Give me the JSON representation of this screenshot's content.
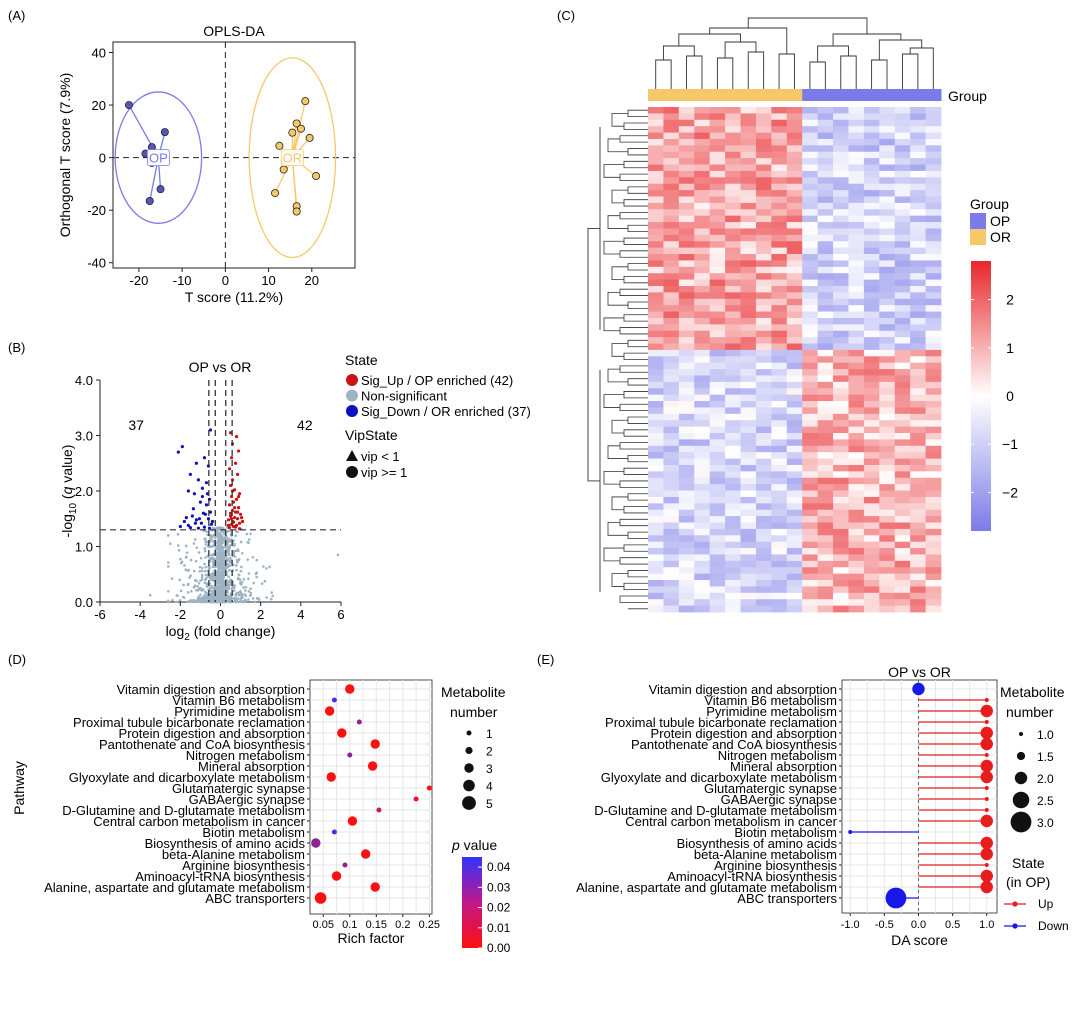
{
  "chart_data": [
    {
      "panel": "(A)",
      "type": "scatter",
      "title": "OPLS-DA",
      "xlabel": "T score (11.2%)",
      "ylabel": "Orthogonal T score (7.9%)",
      "xlim": [
        -26,
        30
      ],
      "ylim": [
        -42,
        44
      ],
      "xticks": [
        "-20",
        "-10",
        "0",
        "10",
        "20"
      ],
      "xtick_values": [
        -20,
        -10,
        0,
        10,
        20
      ],
      "yticks": [
        "-40",
        "-20",
        "0",
        "20",
        "40"
      ],
      "ytick_values": [
        -40,
        -20,
        0,
        20,
        40
      ],
      "reference_lines": {
        "x": 0,
        "y": 0
      },
      "groups": [
        {
          "name": "OP",
          "color": "#7B7BE8",
          "fill": "#5555BB",
          "centroid": [
            -15.5,
            0
          ],
          "ellipse": {
            "cx": -15.5,
            "cy": 0,
            "rx": 10,
            "ry": 25
          },
          "points": [
            [
              -22.3,
              20
            ],
            [
              -14,
              9.7
            ],
            [
              -18.5,
              1.5
            ],
            [
              -17,
              4
            ],
            [
              -17,
              -2
            ],
            [
              -15,
              -12
            ],
            [
              -17.5,
              -16.5
            ]
          ]
        },
        {
          "name": "OR",
          "color": "#F5C96A",
          "fill": "#F5C96A",
          "centroid": [
            15.5,
            0
          ],
          "ellipse": {
            "cx": 15.5,
            "cy": 0,
            "rx": 10,
            "ry": 38
          },
          "points": [
            [
              18.5,
              21.5
            ],
            [
              16.5,
              13
            ],
            [
              17.5,
              11
            ],
            [
              15.5,
              9.5
            ],
            [
              19.5,
              7.5
            ],
            [
              12.5,
              4.5
            ],
            [
              13.5,
              -4.5
            ],
            [
              21,
              -7
            ],
            [
              11.5,
              -13.5
            ],
            [
              16.5,
              -18.5
            ],
            [
              16.5,
              -20.5
            ]
          ]
        }
      ]
    },
    {
      "panel": "(B)",
      "type": "scatter",
      "title": "OP vs OR",
      "xlabel": "log2 (fold change)",
      "ylabel": "-log10 (q value)",
      "xlim": [
        -6,
        6
      ],
      "ylim": [
        0,
        4
      ],
      "xticks": [
        "-6",
        "-4",
        "-2",
        "0",
        "2",
        "4",
        "6"
      ],
      "xtick_values": [
        -6,
        -4,
        -2,
        0,
        2,
        4,
        6
      ],
      "yticks": [
        "0.0",
        "1.0",
        "2.0",
        "3.0",
        "4.0"
      ],
      "ytick_values": [
        0,
        1,
        2,
        3,
        4
      ],
      "vlines": [
        -0.58,
        -0.26,
        0.26,
        0.58
      ],
      "hline": 1.3,
      "count_labels": [
        {
          "text": "37",
          "x": -4.2,
          "y": 3.1
        },
        {
          "text": "42",
          "x": 4.2,
          "y": 3.1
        }
      ],
      "legend": {
        "state_title": "State",
        "state_items": [
          {
            "label": "Sig_Up / OP enriched (42)",
            "color": "#CC1111"
          },
          {
            "label": "Non-significant",
            "color": "#9DB3C4"
          },
          {
            "label": "Sig_Down / OR enriched (37)",
            "color": "#1111BB"
          }
        ],
        "vip_title": "VipState",
        "vip_items": [
          {
            "label": "vip < 1",
            "shape": "triangle"
          },
          {
            "label": "vip >= 1",
            "shape": "circle"
          }
        ]
      },
      "series": [
        {
          "name": "Sig_Up / OP enriched (42)",
          "color": "#CC1111",
          "points": [
            [
              0.5,
              3.05
            ],
            [
              0.8,
              2.98
            ],
            [
              0.6,
              2.85
            ],
            [
              0.9,
              2.72
            ],
            [
              0.55,
              2.6
            ],
            [
              0.75,
              2.5
            ],
            [
              0.45,
              2.4
            ],
            [
              0.85,
              2.3
            ],
            [
              0.6,
              2.2
            ],
            [
              0.5,
              2.1
            ],
            [
              0.7,
              2.02
            ],
            [
              0.95,
              1.95
            ],
            [
              0.55,
              1.9
            ],
            [
              0.8,
              1.85
            ],
            [
              0.65,
              1.8
            ],
            [
              0.45,
              1.75
            ],
            [
              0.9,
              1.7
            ],
            [
              0.6,
              1.65
            ],
            [
              0.75,
              1.62
            ],
            [
              1.0,
              1.58
            ],
            [
              0.5,
              1.55
            ],
            [
              0.7,
              1.52
            ],
            [
              0.85,
              1.5
            ],
            [
              0.4,
              1.48
            ],
            [
              0.6,
              1.45
            ],
            [
              0.95,
              1.42
            ],
            [
              0.55,
              1.4
            ],
            [
              0.8,
              1.38
            ],
            [
              0.65,
              1.36
            ],
            [
              0.45,
              1.34
            ],
            [
              1.1,
              1.45
            ],
            [
              0.5,
              1.6
            ],
            [
              0.7,
              1.7
            ],
            [
              0.9,
              1.9
            ],
            [
              0.6,
              2.0
            ],
            [
              0.75,
              1.35
            ],
            [
              0.55,
              1.5
            ],
            [
              0.85,
              1.62
            ],
            [
              1.05,
              1.52
            ],
            [
              0.65,
              1.44
            ],
            [
              0.4,
              1.38
            ],
            [
              0.95,
              1.32
            ]
          ]
        },
        {
          "name": "Sig_Down / OR enriched (37)",
          "color": "#1111BB",
          "points": [
            [
              -1.9,
              2.8
            ],
            [
              -2.1,
              2.7
            ],
            [
              -0.5,
              3.1
            ],
            [
              -1.2,
              2.5
            ],
            [
              -0.8,
              2.6
            ],
            [
              -0.6,
              2.45
            ],
            [
              -1.5,
              2.3
            ],
            [
              -1.1,
              2.2
            ],
            [
              -0.7,
              2.15
            ],
            [
              -1.6,
              2.0
            ],
            [
              -1.3,
              1.95
            ],
            [
              -0.9,
              1.9
            ],
            [
              -0.55,
              1.85
            ],
            [
              -1.0,
              1.8
            ],
            [
              -0.7,
              1.75
            ],
            [
              -1.4,
              1.55
            ],
            [
              -1.8,
              1.45
            ],
            [
              -1.2,
              1.48
            ],
            [
              -0.95,
              1.42
            ],
            [
              -0.6,
              1.5
            ],
            [
              -0.45,
              1.4
            ],
            [
              -1.6,
              1.38
            ],
            [
              -0.8,
              1.35
            ],
            [
              -1.1,
              1.33
            ],
            [
              -0.5,
              1.62
            ],
            [
              -0.75,
              1.58
            ],
            [
              -1.35,
              1.68
            ],
            [
              -0.65,
              1.95
            ],
            [
              -0.9,
              2.05
            ],
            [
              -1.05,
              1.5
            ],
            [
              -0.4,
              1.45
            ],
            [
              -1.25,
              1.42
            ],
            [
              -0.85,
              1.6
            ],
            [
              -1.5,
              1.34
            ],
            [
              -0.55,
              1.33
            ],
            [
              -2.0,
              1.36
            ],
            [
              -1.7,
              1.52
            ]
          ]
        }
      ]
    },
    {
      "panel": "(C)",
      "type": "heatmap",
      "legend": {
        "group_title": "Group",
        "groups": [
          {
            "name": "OP",
            "color": "#7B7BE8"
          },
          {
            "name": "OR",
            "color": "#F5C96A"
          }
        ],
        "colorbar_ticks": [
          "2",
          "1",
          "0",
          "−1",
          "−2"
        ],
        "colorbar_values": [
          2,
          1,
          0,
          -1,
          -2
        ],
        "colorbar_range": [
          -2.8,
          2.8
        ],
        "colors": {
          "low": "#7B7BE8",
          "mid": "#FFFFFF",
          "high": "#E8272B"
        }
      },
      "annotation_label": "Group",
      "columns": 19,
      "column_groups": [
        "OR",
        "OR",
        "OR",
        "OR",
        "OR",
        "OR",
        "OR",
        "OR",
        "OR",
        "OR",
        "OP",
        "OP",
        "OP",
        "OP",
        "OP",
        "OP",
        "OP",
        "OP",
        "OP"
      ],
      "rows": 79,
      "row_blocks": [
        {
          "rows": 38,
          "OR_mean": 1.1,
          "OP_mean": -0.9
        },
        {
          "rows": 41,
          "OR_mean": -0.8,
          "OP_mean": 0.9
        }
      ]
    },
    {
      "panel": "(D)",
      "type": "scatter",
      "xlabel": "Rich factor",
      "ylabel": "Pathway",
      "xlim": [
        0.025,
        0.255
      ],
      "xticks": [
        "0.05",
        "0.1",
        "0.15",
        "0.2",
        "0.25"
      ],
      "xtick_values": [
        0.05,
        0.1,
        0.15,
        0.2,
        0.25
      ],
      "size_legend_title": "Metabolite number",
      "size_legend": [
        "1",
        "2",
        "3",
        "4",
        "5"
      ],
      "size_values": [
        1,
        2,
        3,
        4,
        5
      ],
      "color_legend_title": "p value",
      "color_legend_ticks": [
        "0.04",
        "0.03",
        "0.02",
        "0.01",
        "0.00"
      ],
      "color_values": [
        0.04,
        0.03,
        0.02,
        0.01,
        0.0
      ],
      "color_range": {
        "low": "#FF1010",
        "high": "#3333FF"
      },
      "pathways": [
        {
          "name": "Vitamin digestion and absorption",
          "rich": 0.1,
          "count": 3,
          "p": 0.0
        },
        {
          "name": "Vitamin B6 metabolism",
          "rich": 0.071,
          "count": 1,
          "p": 0.04
        },
        {
          "name": "Pyrimidine metabolism",
          "rich": 0.062,
          "count": 3,
          "p": 0.0
        },
        {
          "name": "Proximal tubule bicarbonate reclamation",
          "rich": 0.118,
          "count": 1,
          "p": 0.025
        },
        {
          "name": "Protein digestion and absorption",
          "rich": 0.085,
          "count": 3,
          "p": 0.0
        },
        {
          "name": "Pantothenate and CoA biosynthesis",
          "rich": 0.148,
          "count": 3,
          "p": 0.0
        },
        {
          "name": "Nitrogen metabolism",
          "rich": 0.1,
          "count": 1,
          "p": 0.025
        },
        {
          "name": "Mineral absorption",
          "rich": 0.143,
          "count": 3,
          "p": 0.0
        },
        {
          "name": "Glyoxylate and dicarboxylate metabolism",
          "rich": 0.065,
          "count": 3,
          "p": 0.0
        },
        {
          "name": "Glutamatergic synapse",
          "rich": 0.25,
          "count": 1,
          "p": 0.0
        },
        {
          "name": "GABAergic synapse",
          "rich": 0.225,
          "count": 1,
          "p": 0.005
        },
        {
          "name": "D-Glutamine and D-glutamate metabolism",
          "rich": 0.155,
          "count": 1,
          "p": 0.012
        },
        {
          "name": "Central carbon metabolism in cancer",
          "rich": 0.105,
          "count": 3,
          "p": 0.0
        },
        {
          "name": "Biotin metabolism",
          "rich": 0.071,
          "count": 1,
          "p": 0.04
        },
        {
          "name": "Biosynthesis of amino acids",
          "rich": 0.036,
          "count": 3,
          "p": 0.025
        },
        {
          "name": "beta-Alanine metabolism",
          "rich": 0.13,
          "count": 3,
          "p": 0.0
        },
        {
          "name": "Arginine biosynthesis",
          "rich": 0.091,
          "count": 1,
          "p": 0.025
        },
        {
          "name": "Aminoacyl-tRNA biosynthesis",
          "rich": 0.075,
          "count": 3,
          "p": 0.0
        },
        {
          "name": "Alanine, aspartate and glutamate metabolism",
          "rich": 0.148,
          "count": 3,
          "p": 0.0
        },
        {
          "name": "ABC transporters",
          "rich": 0.045,
          "count": 4,
          "p": 0.0
        }
      ]
    },
    {
      "panel": "(E)",
      "type": "scatter",
      "title": "OP vs OR",
      "xlabel": "DA score",
      "xlim": [
        -1.12,
        1.15
      ],
      "xticks": [
        "-1.0",
        "-0.5",
        "0.0",
        "0.5",
        "1.0"
      ],
      "xtick_values": [
        -1.0,
        -0.5,
        0.0,
        0.5,
        1.0
      ],
      "size_legend_title": "Metabolite number",
      "size_legend": [
        "1.0",
        "1.5",
        "2.0",
        "2.5",
        "3.0"
      ],
      "size_values": [
        1.0,
        1.5,
        2.0,
        2.5,
        3.0
      ],
      "state_legend_title": "State (in OP)",
      "state_legend": [
        {
          "label": "Up",
          "color": "#E81C1C"
        },
        {
          "label": "Down",
          "color": "#1818E8"
        }
      ],
      "pathways": [
        {
          "name": "Vitamin digestion and absorption",
          "score": 0.0,
          "count": 2,
          "state": "Down"
        },
        {
          "name": "Vitamin B6 metabolism",
          "score": 1.0,
          "count": 1,
          "state": "Up"
        },
        {
          "name": "Pyrimidine metabolism",
          "score": 1.0,
          "count": 2,
          "state": "Up"
        },
        {
          "name": "Proximal tubule bicarbonate reclamation",
          "score": 1.0,
          "count": 1,
          "state": "Up"
        },
        {
          "name": "Protein digestion and absorption",
          "score": 1.0,
          "count": 2,
          "state": "Up"
        },
        {
          "name": "Pantothenate and CoA biosynthesis",
          "score": 1.0,
          "count": 2,
          "state": "Up"
        },
        {
          "name": "Nitrogen metabolism",
          "score": 1.0,
          "count": 1,
          "state": "Up"
        },
        {
          "name": "Mineral absorption",
          "score": 1.0,
          "count": 2,
          "state": "Up"
        },
        {
          "name": "Glyoxylate and dicarboxylate metabolism",
          "score": 1.0,
          "count": 2,
          "state": "Up"
        },
        {
          "name": "Glutamatergic synapse",
          "score": 1.0,
          "count": 1,
          "state": "Up"
        },
        {
          "name": "GABAergic synapse",
          "score": 1.0,
          "count": 1,
          "state": "Up"
        },
        {
          "name": "D-Glutamine and D-glutamate metabolism",
          "score": 1.0,
          "count": 1,
          "state": "Up"
        },
        {
          "name": "Central carbon metabolism in cancer",
          "score": 1.0,
          "count": 2,
          "state": "Up"
        },
        {
          "name": "Biotin metabolism",
          "score": -1.0,
          "count": 1,
          "state": "Down"
        },
        {
          "name": "Biosynthesis of amino acids",
          "score": 1.0,
          "count": 2,
          "state": "Up"
        },
        {
          "name": "beta-Alanine metabolism",
          "score": 1.0,
          "count": 2,
          "state": "Up"
        },
        {
          "name": "Arginine biosynthesis",
          "score": 1.0,
          "count": 1,
          "state": "Up"
        },
        {
          "name": "Aminoacyl-tRNA biosynthesis",
          "score": 1.0,
          "count": 2,
          "state": "Up"
        },
        {
          "name": "Alanine, aspartate and glutamate metabolism",
          "score": 1.0,
          "count": 2,
          "state": "Up"
        },
        {
          "name": "ABC transporters",
          "score": -0.33,
          "count": 3,
          "state": "Down"
        }
      ]
    }
  ]
}
